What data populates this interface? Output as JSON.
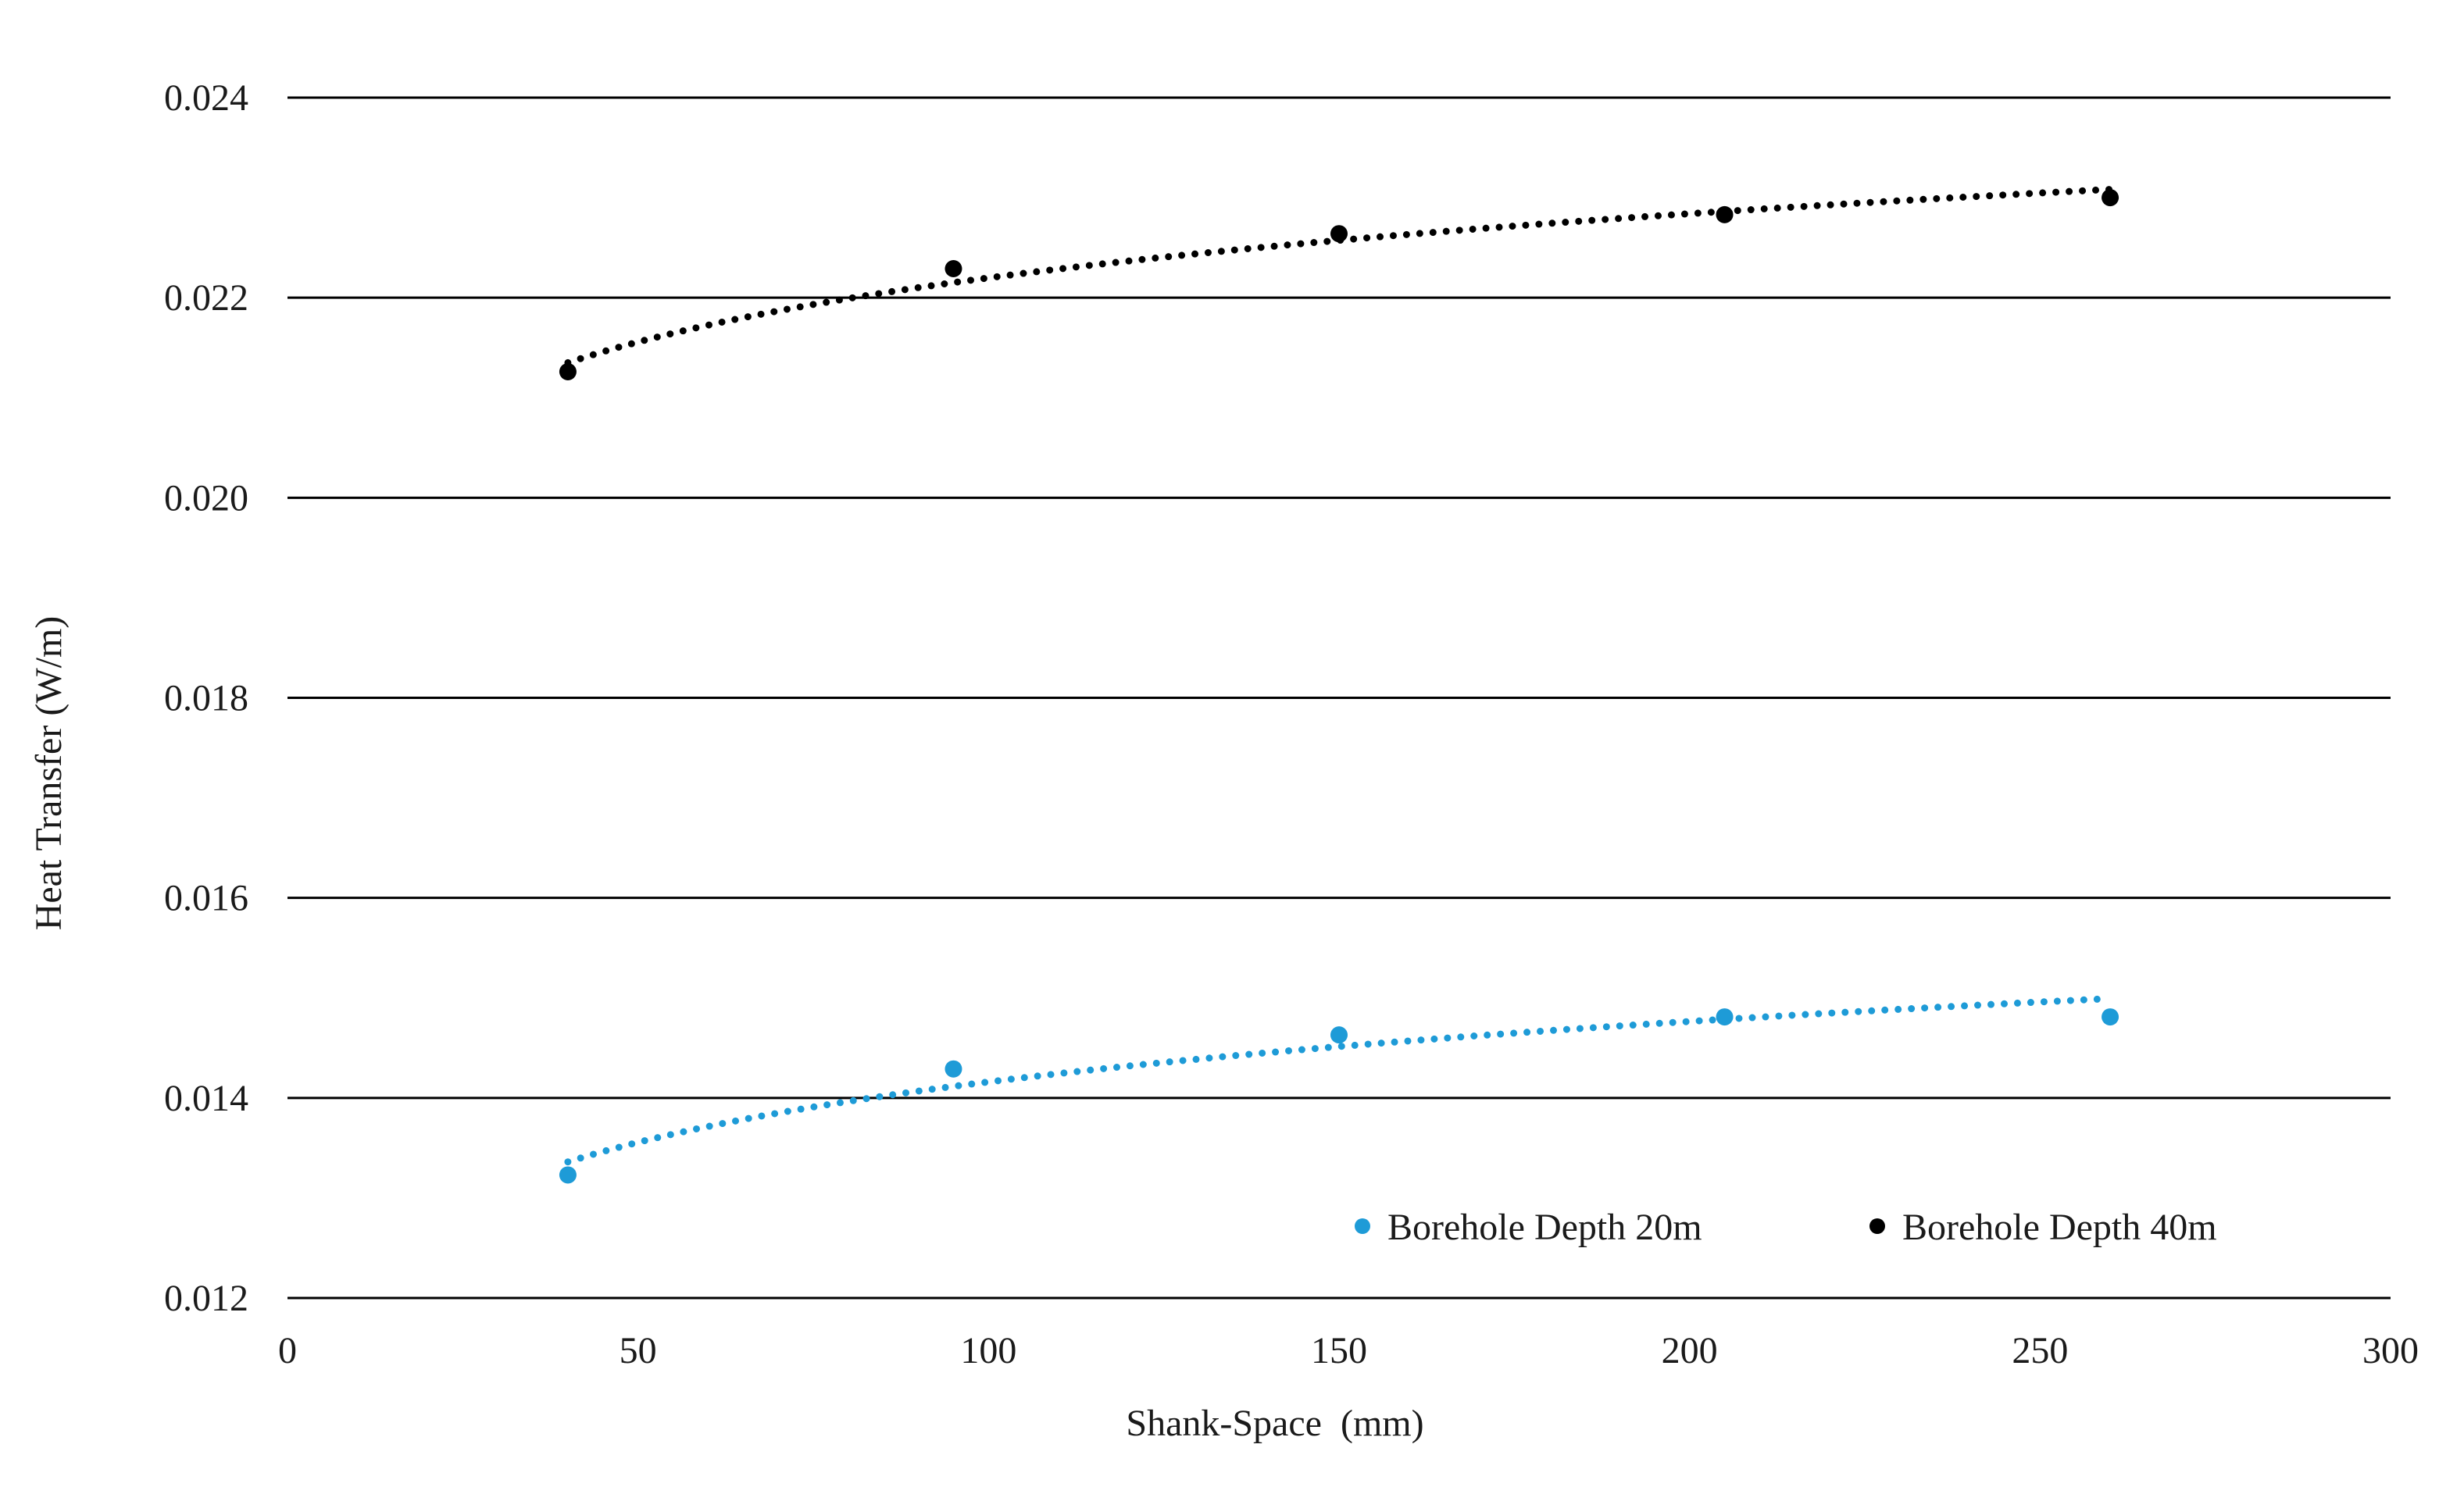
{
  "chart_data": {
    "type": "scatter",
    "title": "",
    "xlabel": "Shank-Space  (mm)",
    "ylabel": "Heat Transfer (W/m)",
    "xlim": [
      0,
      300
    ],
    "ylim": [
      0.012,
      0.024
    ],
    "x_ticks": [
      0,
      50,
      100,
      150,
      200,
      250,
      300
    ],
    "y_ticks": [
      0.012,
      0.014,
      0.016,
      0.018,
      0.02,
      0.022,
      0.024
    ],
    "x_tick_labels": [
      "0",
      "50",
      "100",
      "150",
      "200",
      "250",
      "300"
    ],
    "y_tick_labels": [
      "0.012",
      "0.014",
      "0.016",
      "0.018",
      "0.020",
      "0.022",
      "0.024"
    ],
    "grid": "horizontal",
    "legend_position": "bottom-right",
    "trendline": "logarithmic, dotted",
    "series": [
      {
        "name": "Borehole Depth 20m",
        "color": "#1e9bd7",
        "x": [
          40,
          95,
          150,
          205,
          260
        ],
        "y": [
          0.01323,
          0.01429,
          0.01463,
          0.01481,
          0.01481
        ]
      },
      {
        "name": "Borehole Depth 40m",
        "color": "#000000",
        "x": [
          40,
          95,
          150,
          205,
          260
        ],
        "y": [
          0.02126,
          0.02229,
          0.02264,
          0.02283,
          0.023
        ]
      }
    ]
  }
}
